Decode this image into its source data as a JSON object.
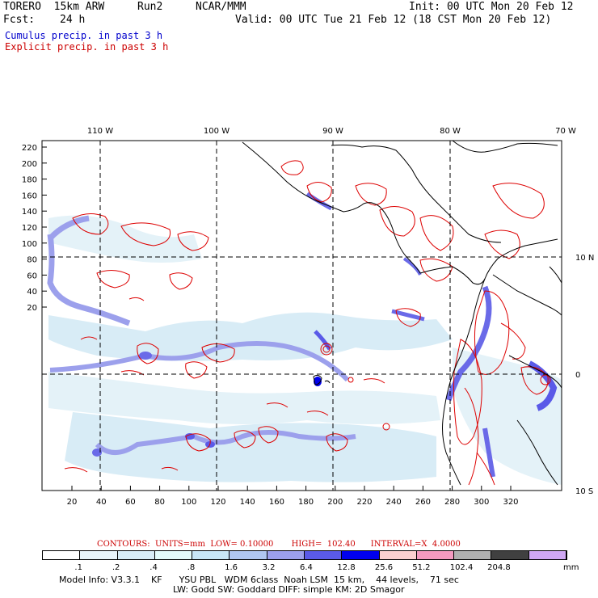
{
  "header": {
    "model": "TORERO  15km ARW",
    "run": "Run2",
    "org": "NCAR/MMM",
    "init": "Init: 00 UTC Mon 20 Feb 12",
    "fcst_label": "Fcst:",
    "fcst_value": "24 h",
    "valid": "Valid: 00 UTC Tue 21 Feb 12 (18 CST Mon 20 Feb 12)"
  },
  "legend_lines": {
    "cumulus": "Cumulus precip. in past 3 h",
    "explicit": "Explicit precip. in past 3 h"
  },
  "colors": {
    "cumulus_text": "#0000cc",
    "explicit_text": "#cc0000",
    "contour": "#dd0000",
    "coast": "#000000"
  },
  "map": {
    "lon_labels": [
      "110 W",
      "100 W",
      "90 W",
      "80 W",
      "70 W"
    ],
    "lat_labels": [
      "10 N",
      "0",
      "10 S"
    ],
    "y_ticks": [
      "220",
      "200",
      "180",
      "160",
      "140",
      "120",
      "100",
      "80",
      "60",
      "40",
      "20"
    ],
    "x_ticks": [
      "20",
      "40",
      "60",
      "80",
      "100",
      "120",
      "140",
      "160",
      "180",
      "200",
      "220",
      "240",
      "260",
      "280",
      "300",
      "320"
    ]
  },
  "colorbar": {
    "colors": [
      "#ffffff",
      "#e8f4fa",
      "#d8ecf6",
      "#e4fbfb",
      "#c8e6f6",
      "#b0c6f0",
      "#9ca0ec",
      "#5a5ae8",
      "#0000ee",
      "#fbd0d0",
      "#f49ac0",
      "#b0b0b0",
      "#404040",
      "#d0a8f4"
    ],
    "labels": [
      ".1",
      ".2",
      ".4",
      ".8",
      "1.6",
      "3.2",
      "6.4",
      "12.8",
      "25.6",
      "51.2",
      "102.4",
      "204.8"
    ],
    "unit": "mm"
  },
  "contours_info": "CONTOURS:  UNITS=mm  LOW= 0.10000       HIGH=  102.40      INTERVAL=X  4.0000",
  "model_info": {
    "line1": "Model Info: V3.3.1    KF      YSU PBL   WDM 6class  Noah LSM  15 km,    44 levels,    71 sec",
    "line2": "LW: Godd SW: Goddard DIFF: simple KM: 2D Smagor"
  }
}
